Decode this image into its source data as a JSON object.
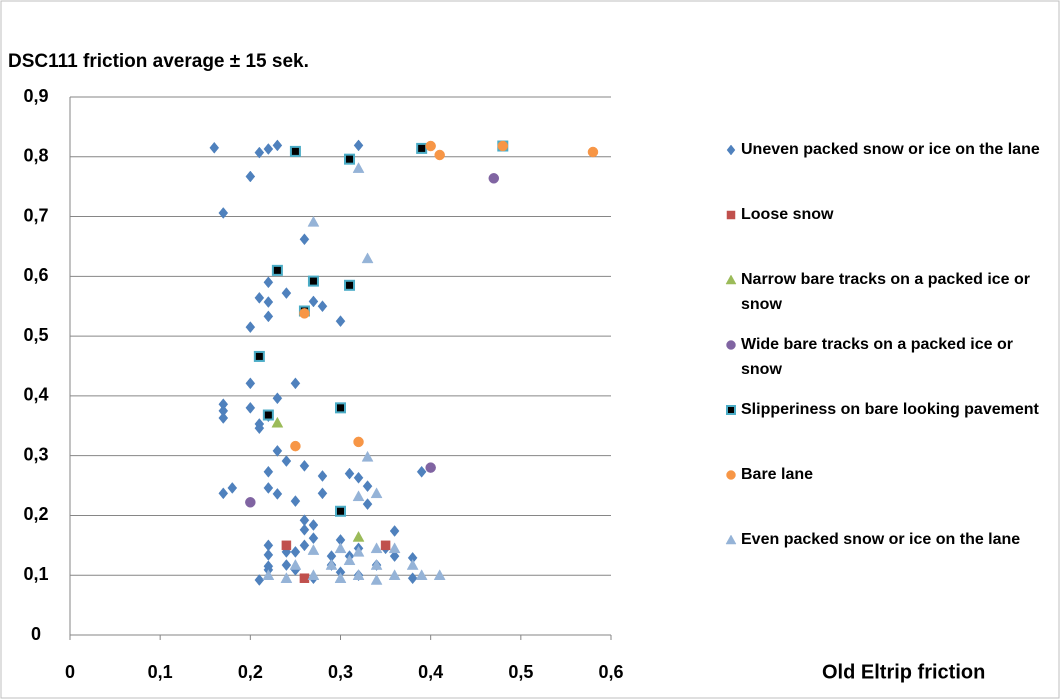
{
  "chart_data": {
    "type": "scatter",
    "title": "DSC111 friction average ± 15 sek.",
    "x_label": "Old Eltrip friction",
    "xlim": [
      0,
      0.6
    ],
    "ylim": [
      0,
      0.9
    ],
    "xticks": [
      0,
      {
        "value": 0.1,
        "label": "0,1"
      },
      {
        "value": 0.2,
        "label": "0,2"
      },
      {
        "value": 0.3,
        "label": "0,3"
      },
      {
        "value": 0.4,
        "label": "0,4"
      },
      {
        "value": 0.5,
        "label": "0,5"
      },
      {
        "value": 0.6,
        "label": "0,6"
      }
    ],
    "yticks": [
      0,
      {
        "value": 0.1,
        "label": "0,1"
      },
      {
        "value": 0.2,
        "label": "0,2"
      },
      {
        "value": 0.3,
        "label": "0,3"
      },
      {
        "value": 0.4,
        "label": "0,4"
      },
      {
        "value": 0.5,
        "label": "0,5"
      },
      {
        "value": 0.6,
        "label": "0,6"
      },
      {
        "value": 0.7,
        "label": "0,7"
      },
      {
        "value": 0.8,
        "label": "0,8"
      },
      {
        "value": 0.9,
        "label": "0,9"
      }
    ],
    "grid": true,
    "legend": "right",
    "series": [
      {
        "name": "Uneven packed snow or ice on the lane",
        "color": "#4f81bd",
        "marker": "diamond",
        "x": [
          0.16,
          0.21,
          0.22,
          0.23,
          0.32,
          0.2,
          0.17,
          0.26,
          0.22,
          0.21,
          0.24,
          0.22,
          0.27,
          0.28,
          0.22,
          0.3,
          0.2,
          0.2,
          0.25,
          0.23,
          0.17,
          0.17,
          0.17,
          0.2,
          0.22,
          0.21,
          0.21,
          0.23,
          0.24,
          0.26,
          0.22,
          0.31,
          0.32,
          0.39,
          0.33,
          0.17,
          0.18,
          0.22,
          0.23,
          0.28,
          0.28,
          0.25,
          0.33,
          0.26,
          0.27,
          0.26,
          0.36,
          0.27,
          0.3,
          0.22,
          0.26,
          0.24,
          0.25,
          0.22,
          0.32,
          0.35,
          0.29,
          0.31,
          0.36,
          0.38,
          0.24,
          0.22,
          0.29,
          0.34,
          0.25,
          0.3,
          0.32,
          0.27,
          0.38,
          0.22,
          0.21
        ],
        "y": [
          0.815,
          0.807,
          0.813,
          0.819,
          0.819,
          0.767,
          0.706,
          0.662,
          0.59,
          0.564,
          0.572,
          0.557,
          0.558,
          0.55,
          0.533,
          0.525,
          0.515,
          0.421,
          0.421,
          0.396,
          0.386,
          0.375,
          0.363,
          0.38,
          0.366,
          0.353,
          0.346,
          0.308,
          0.291,
          0.283,
          0.273,
          0.27,
          0.263,
          0.273,
          0.249,
          0.237,
          0.246,
          0.246,
          0.236,
          0.266,
          0.237,
          0.224,
          0.219,
          0.192,
          0.184,
          0.176,
          0.174,
          0.162,
          0.159,
          0.15,
          0.15,
          0.139,
          0.139,
          0.134,
          0.145,
          0.145,
          0.132,
          0.132,
          0.132,
          0.129,
          0.117,
          0.115,
          0.117,
          0.117,
          0.109,
          0.105,
          0.1,
          0.095,
          0.095,
          0.109,
          0.092
        ]
      },
      {
        "name": "Loose snow",
        "color": "#c0504d",
        "marker": "square",
        "x": [
          0.26,
          0.35,
          0.24
        ],
        "y": [
          0.095,
          0.15,
          0.15
        ]
      },
      {
        "name": "Narrow bare tracks on a packed ice or snow",
        "color": "#9bbb59",
        "marker": "triangle",
        "x": [
          0.23,
          0.32
        ],
        "y": [
          0.355,
          0.164
        ]
      },
      {
        "name": "Wide bare tracks on a packed ice or snow",
        "color": "#8064a2",
        "marker": "circle",
        "x": [
          0.47,
          0.4,
          0.2
        ],
        "y": [
          0.764,
          0.28,
          0.222
        ]
      },
      {
        "name": "Slipperiness on bare looking pavement",
        "color": "#000000",
        "edgecolor": "#4bacc6",
        "marker": "square",
        "x": [
          0.25,
          0.31,
          0.39,
          0.48,
          0.23,
          0.27,
          0.31,
          0.26,
          0.21,
          0.22,
          0.3,
          0.3
        ],
        "y": [
          0.809,
          0.796,
          0.814,
          0.818,
          0.61,
          0.592,
          0.585,
          0.542,
          0.466,
          0.368,
          0.38,
          0.207
        ]
      },
      {
        "name": "Bare lane",
        "color": "#f79646",
        "marker": "circle",
        "x": [
          0.4,
          0.41,
          0.48,
          0.58,
          0.26,
          0.25,
          0.32
        ],
        "y": [
          0.818,
          0.803,
          0.818,
          0.808,
          0.538,
          0.316,
          0.323
        ]
      },
      {
        "name": "Even packed snow or ice on the lane",
        "color": "#95b3d7",
        "marker": "triangle",
        "x": [
          0.27,
          0.32,
          0.33,
          0.33,
          0.34,
          0.32,
          0.24,
          0.27,
          0.3,
          0.32,
          0.34,
          0.36,
          0.29,
          0.31,
          0.34,
          0.38,
          0.32,
          0.36,
          0.39,
          0.41,
          0.27,
          0.25,
          0.3,
          0.22,
          0.34
        ],
        "y": [
          0.691,
          0.781,
          0.63,
          0.298,
          0.237,
          0.232,
          0.095,
          0.142,
          0.145,
          0.139,
          0.145,
          0.145,
          0.117,
          0.125,
          0.117,
          0.117,
          0.1,
          0.1,
          0.1,
          0.1,
          0.1,
          0.117,
          0.095,
          0.1,
          0.092
        ]
      }
    ]
  }
}
